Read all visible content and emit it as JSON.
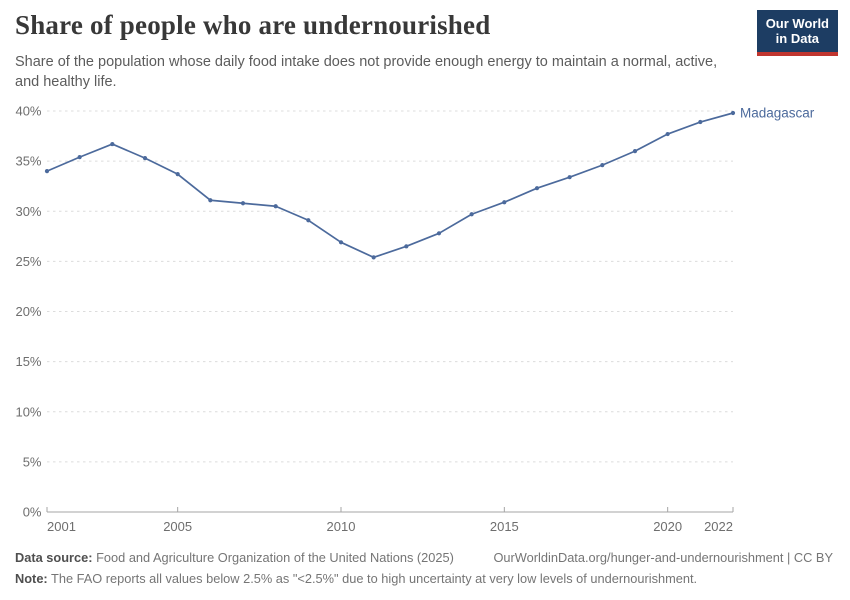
{
  "header": {
    "title": "Share of people who are undernourished",
    "subtitle": "Share of the population whose daily food intake does not provide enough energy to maintain a normal, active, and healthy life.",
    "logo": {
      "line1": "Our World",
      "line2": "in Data",
      "bg_color": "#1d3d63",
      "accent_color": "#c0352f"
    }
  },
  "chart_data": {
    "type": "line",
    "title": "Share of people who are undernourished",
    "x": [
      2001,
      2002,
      2003,
      2004,
      2005,
      2006,
      2007,
      2008,
      2009,
      2010,
      2011,
      2012,
      2013,
      2014,
      2015,
      2016,
      2017,
      2018,
      2019,
      2020,
      2021,
      2022
    ],
    "series": [
      {
        "name": "Madagascar",
        "color": "#4c6a9c",
        "values": [
          34.0,
          35.4,
          36.7,
          35.3,
          33.7,
          31.1,
          30.8,
          30.5,
          29.1,
          26.9,
          25.4,
          26.5,
          27.8,
          29.7,
          30.9,
          32.3,
          33.4,
          34.6,
          36.0,
          37.7,
          38.9,
          39.8
        ]
      }
    ],
    "xlabel": "",
    "ylabel": "",
    "ylim": [
      0,
      40
    ],
    "y_ticks": [
      0,
      5,
      10,
      15,
      20,
      25,
      30,
      35,
      40
    ],
    "y_tick_suffix": "%",
    "x_ticks": [
      2001,
      2005,
      2010,
      2015,
      2020,
      2022
    ],
    "grid": "horizontal-dashed",
    "grid_color": "#dcdcdc",
    "axis_color": "#a5a5a5",
    "tick_label_color": "#6e6e6e",
    "legend_position": "end-of-line-label"
  },
  "footer": {
    "data_source_label": "Data source:",
    "data_source_text": "Food and Agriculture Organization of the United Nations (2025)",
    "attribution": "OurWorldinData.org/hunger-and-undernourishment | CC BY",
    "note_label": "Note:",
    "note_text": "The FAO reports all values below 2.5% as \"<2.5%\" due to high uncertainty at very low levels of undernourishment."
  }
}
